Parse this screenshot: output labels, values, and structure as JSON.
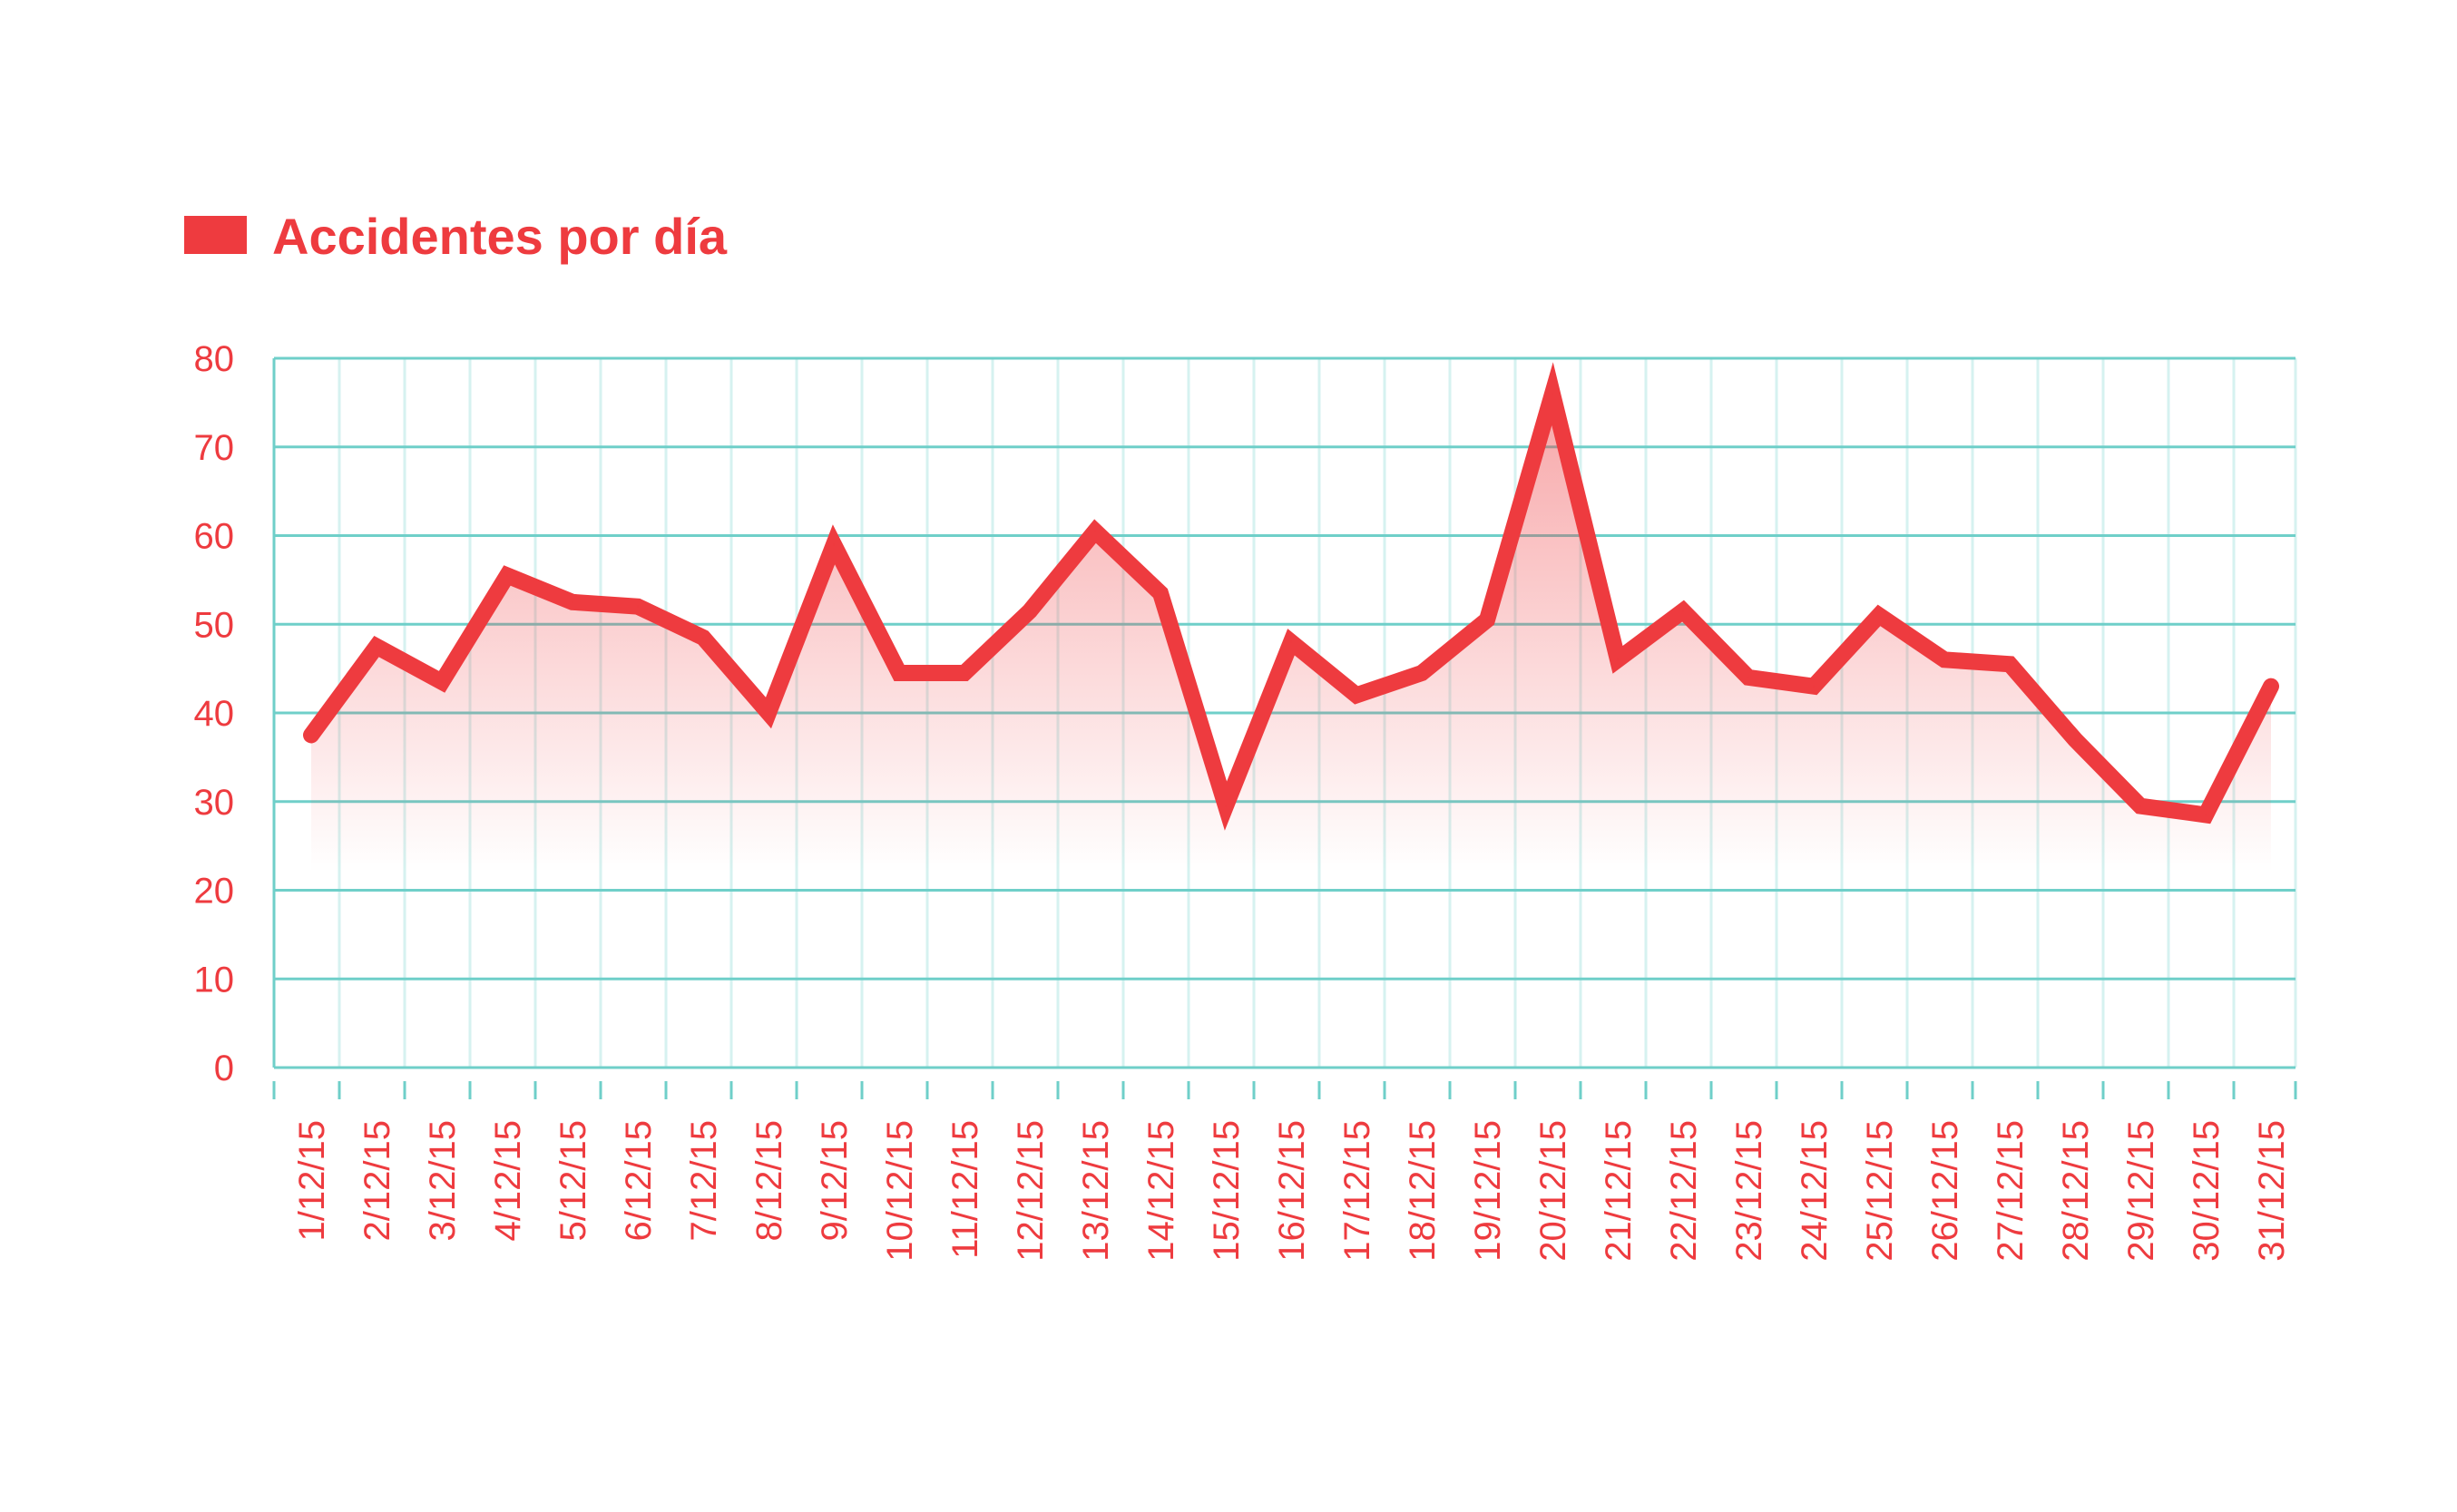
{
  "chart_data": {
    "type": "line",
    "title": "",
    "xlabel": "",
    "ylabel": "",
    "ylim": [
      0,
      80
    ],
    "yticks": [
      "0",
      "10",
      "20",
      "30",
      "40",
      "50",
      "60",
      "70",
      "80"
    ],
    "grid": true,
    "legend_position": "top-left",
    "categories": [
      "1/12/15",
      "2/12/15",
      "3/12/15",
      "4/12/15",
      "5/12/15",
      "6/12/15",
      "7/12/15",
      "8/12/15",
      "9/12/15",
      "10/12/15",
      "11/12/15",
      "12/12/15",
      "13/12/15",
      "14/12/15",
      "15/12/15",
      "16/12/15",
      "17/12/15",
      "18/12/15",
      "19/12/15",
      "20/12/15",
      "21/12/15",
      "22/12/15",
      "23/12/15",
      "24/12/15",
      "25/12/15",
      "26/12/15",
      "27/12/15",
      "28/12/15",
      "29/12/15",
      "30/12/15",
      "31/12/15"
    ],
    "series": [
      {
        "name": "Accidentes por día",
        "values": [
          37.5,
          47.5,
          43.5,
          55.5,
          52.5,
          52,
          48.5,
          40,
          59,
          44.5,
          44.5,
          51.5,
          60.5,
          53.5,
          29.5,
          48,
          42,
          44.5,
          50.5,
          76,
          46,
          51.5,
          44,
          43,
          51,
          46,
          45.5,
          37,
          29.5,
          28.5,
          43
        ]
      }
    ],
    "colors": {
      "line": "#ee3b3f",
      "text": "#ee3b3f",
      "grid_major": "#6fcfc9",
      "grid_minor": "#d6f2f0"
    }
  }
}
